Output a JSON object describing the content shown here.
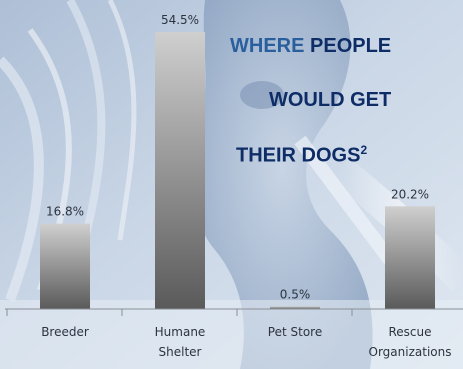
{
  "title": {
    "line1_accent": "WHERE",
    "line1_rest": " PEOPLE",
    "line2": "WOULD GET",
    "line3": "THEIR DOGS",
    "footnote_mark": "2"
  },
  "chart_data": {
    "type": "bar",
    "categories": [
      [
        "Breeder"
      ],
      [
        "Humane",
        "Shelter"
      ],
      [
        "Pet Store"
      ],
      [
        "Rescue",
        "Organizations"
      ]
    ],
    "values": [
      16.8,
      54.5,
      0.5,
      20.2
    ],
    "value_labels": [
      "16.8%",
      "54.5%",
      "0.5%",
      "20.2%"
    ],
    "ylim": [
      0,
      54.5
    ]
  },
  "colors": {
    "title_main": "#0e2c66",
    "title_accent": "#2a5f9e",
    "bar_light": "#cfcfcf",
    "bar_dark": "#5a5a5a",
    "axis": "#8a8f96",
    "label_text": "#2d3440"
  }
}
